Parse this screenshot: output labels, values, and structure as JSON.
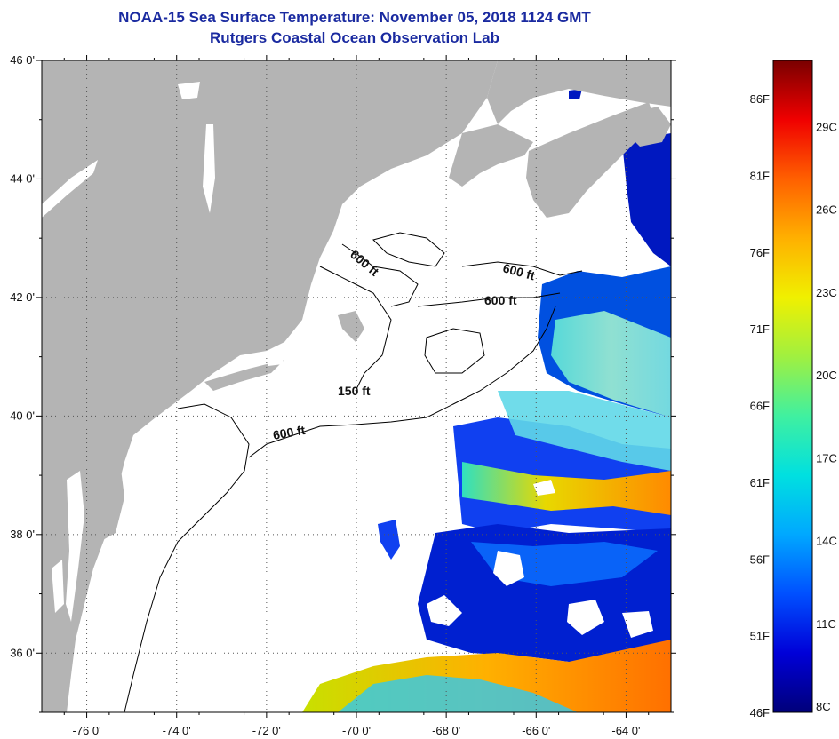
{
  "header": {
    "title": "NOAA-15 Sea Surface Temperature:  November 05, 2018 1124 GMT",
    "subtitle": "Rutgers Coastal Ocean Observation Lab"
  },
  "map": {
    "lon_range": [
      -77,
      -63
    ],
    "lat_range": [
      35,
      46
    ],
    "lat_ticks": [
      {
        "value": 46,
        "label": "46 0'"
      },
      {
        "value": 44,
        "label": "44 0'"
      },
      {
        "value": 42,
        "label": "42 0'"
      },
      {
        "value": 40,
        "label": "40 0'"
      },
      {
        "value": 38,
        "label": "38 0'"
      },
      {
        "value": 36,
        "label": "36 0'"
      }
    ],
    "lon_ticks": [
      {
        "value": -76,
        "label": "-76 0'"
      },
      {
        "value": -74,
        "label": "-74 0'"
      },
      {
        "value": -72,
        "label": "-72 0'"
      },
      {
        "value": -70,
        "label": "-70 0'"
      },
      {
        "value": -68,
        "label": "-68 0'"
      },
      {
        "value": -66,
        "label": "-66 0'"
      },
      {
        "value": -64,
        "label": "-64 0'"
      }
    ],
    "contour_labels": [
      "600 ft",
      "600 ft",
      "600 ft",
      "150 ft",
      "600 ft"
    ],
    "colors": {
      "land": "#b4b4b4",
      "no_data": "#ffffff",
      "grid": "#555555"
    }
  },
  "colorbar": {
    "gradient": [
      "#00007a",
      "#0000d8",
      "#0050ff",
      "#00a8ff",
      "#00e0e0",
      "#40f0a0",
      "#a0f040",
      "#f0f000",
      "#ffb000",
      "#ff6000",
      "#f00000",
      "#7a0000"
    ],
    "fahrenheit_labels": [
      {
        "value": 46,
        "label": "46F"
      },
      {
        "value": 51,
        "label": "51F"
      },
      {
        "value": 56,
        "label": "56F"
      },
      {
        "value": 61,
        "label": "61F"
      },
      {
        "value": 66,
        "label": "66F"
      },
      {
        "value": 71,
        "label": "71F"
      },
      {
        "value": 76,
        "label": "76F"
      },
      {
        "value": 81,
        "label": "81F"
      },
      {
        "value": 86,
        "label": "86F"
      }
    ],
    "celsius_labels": [
      {
        "value": 8,
        "label": "8C"
      },
      {
        "value": 11,
        "label": "11C"
      },
      {
        "value": 14,
        "label": "14C"
      },
      {
        "value": 17,
        "label": "17C"
      },
      {
        "value": 20,
        "label": "20C"
      },
      {
        "value": 23,
        "label": "23C"
      },
      {
        "value": 26,
        "label": "26C"
      },
      {
        "value": 29,
        "label": "29C"
      }
    ]
  }
}
